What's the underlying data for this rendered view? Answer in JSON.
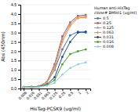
{
  "chart_data": {
    "type": "line",
    "x": [
      2,
      1,
      0.5,
      0.25,
      0.125,
      0.063,
      0.031,
      0.016,
      0.008
    ],
    "series": [
      {
        "name": "0.5",
        "color": "#4472c4",
        "marker": "circle",
        "values": [
          3.0,
          3.05,
          2.85,
          2.1,
          1.0,
          0.32,
          0.12,
          0.08,
          0.07
        ]
      },
      {
        "name": "0.25",
        "color": "#c0504d",
        "marker": "square",
        "values": [
          3.95,
          3.9,
          3.55,
          2.8,
          1.3,
          0.35,
          0.12,
          0.08,
          0.07
        ]
      },
      {
        "name": "0.125",
        "color": "#9e9e9e",
        "marker": "triangle",
        "values": [
          3.88,
          3.82,
          3.45,
          2.65,
          1.2,
          0.33,
          0.12,
          0.08,
          0.07
        ]
      },
      {
        "name": "0.063",
        "color": "#f79646",
        "marker": "diamond",
        "values": [
          3.82,
          3.78,
          3.35,
          2.5,
          1.05,
          0.3,
          0.11,
          0.08,
          0.07
        ]
      },
      {
        "name": "0.031",
        "color": "#1f497d",
        "marker": "circle",
        "values": [
          3.05,
          3.0,
          2.5,
          1.7,
          0.6,
          0.22,
          0.1,
          0.08,
          0.07
        ]
      },
      {
        "name": "0.016",
        "color": "#4e9a35",
        "marker": "square",
        "values": [
          2.1,
          2.0,
          1.85,
          1.3,
          0.45,
          0.18,
          0.1,
          0.08,
          0.07
        ]
      },
      {
        "name": "0.008",
        "color": "#92cddc",
        "marker": "triangle",
        "values": [
          1.4,
          1.3,
          1.1,
          0.75,
          0.3,
          0.15,
          0.09,
          0.07,
          0.07
        ]
      }
    ],
    "x_label": "HisTag-PCSK9 (ug/ml)",
    "y_label": "Abs (450nm)",
    "legend_title": "Human anti-HisTag\nclone# BM901 (ug/ml)",
    "log": "x",
    "xlim": [
      0.006,
      3
    ],
    "xticks": [
      2,
      1,
      0.5,
      0.25,
      0.125,
      0.063,
      0.031,
      0.016,
      0.008
    ],
    "ylim": [
      0,
      4.5
    ],
    "yticks": [
      {
        "value": 0,
        "label": "0.0"
      },
      0.5,
      {
        "value": 1.0,
        "label": "1.0"
      },
      1.5,
      {
        "value": 2.0,
        "label": "2.0"
      },
      2.5,
      {
        "value": 3.0,
        "label": "3.0"
      },
      3.5,
      {
        "value": 4.0,
        "label": "4.0"
      },
      4.5
    ],
    "grid": true,
    "legend": "right"
  }
}
